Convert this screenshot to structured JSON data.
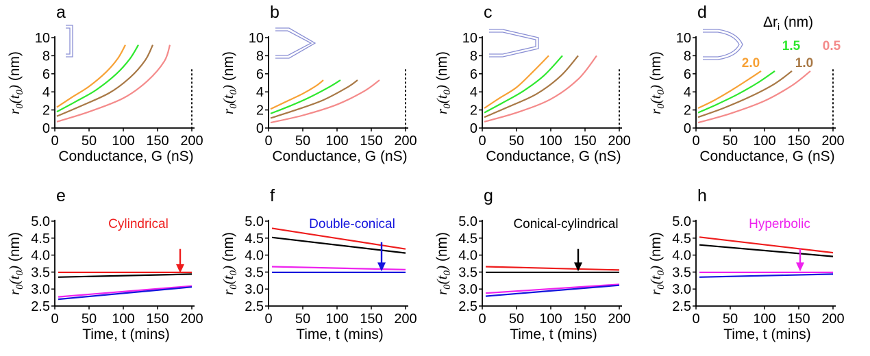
{
  "chart_data": [
    {
      "type": "line",
      "panel": "a",
      "xlabel": "Conductance, G (nS)",
      "ylabel": "r0(t0) (nm)",
      "xlim": [
        0,
        200
      ],
      "ylim": [
        0,
        10
      ],
      "xticks": [
        "0",
        "50",
        "100",
        "150",
        "200"
      ],
      "yticks": [
        "0",
        "2",
        "4",
        "6",
        "8",
        "10"
      ],
      "vline": 200,
      "series": [
        {
          "color": "#f7a135",
          "points": [
            [
              3,
              2.3
            ],
            [
              25,
              3.4
            ],
            [
              50,
              4.6
            ],
            [
              75,
              6.2
            ],
            [
              92,
              7.7
            ],
            [
              103,
              9.2
            ]
          ]
        },
        {
          "color": "#2ee82e",
          "points": [
            [
              3,
              1.8
            ],
            [
              30,
              2.9
            ],
            [
              60,
              4.2
            ],
            [
              90,
              6.0
            ],
            [
              110,
              7.7
            ],
            [
              122,
              9.2
            ]
          ]
        },
        {
          "color": "#a87845",
          "points": [
            [
              3,
              1.3
            ],
            [
              40,
              2.5
            ],
            [
              80,
              3.9
            ],
            [
              110,
              5.6
            ],
            [
              132,
              7.5
            ],
            [
              143,
              9.2
            ]
          ]
        },
        {
          "color": "#f48a8a",
          "points": [
            [
              3,
              0.7
            ],
            [
              50,
              1.8
            ],
            [
              100,
              3.3
            ],
            [
              135,
              5.2
            ],
            [
              160,
              7.4
            ],
            [
              168,
              9.2
            ]
          ]
        }
      ]
    },
    {
      "type": "line",
      "panel": "b",
      "xlabel": "Conductance, G (nS)",
      "ylabel": "r0(t0) (nm)",
      "xlim": [
        0,
        200
      ],
      "ylim": [
        0,
        10
      ],
      "xticks": [
        "0",
        "50",
        "100",
        "150",
        "200"
      ],
      "yticks": [
        "0",
        "2",
        "4",
        "6",
        "8",
        "10"
      ],
      "vline": 200,
      "series": [
        {
          "color": "#f7a135",
          "points": [
            [
              3,
              2.1
            ],
            [
              25,
              2.9
            ],
            [
              50,
              3.8
            ],
            [
              70,
              4.7
            ],
            [
              80,
              5.3
            ]
          ]
        },
        {
          "color": "#2ee82e",
          "points": [
            [
              3,
              1.6
            ],
            [
              30,
              2.4
            ],
            [
              60,
              3.4
            ],
            [
              90,
              4.6
            ],
            [
              105,
              5.3
            ]
          ]
        },
        {
          "color": "#a87845",
          "points": [
            [
              3,
              1.1
            ],
            [
              40,
              2.0
            ],
            [
              80,
              3.1
            ],
            [
              115,
              4.5
            ],
            [
              130,
              5.3
            ]
          ]
        },
        {
          "color": "#f48a8a",
          "points": [
            [
              3,
              0.6
            ],
            [
              50,
              1.4
            ],
            [
              100,
              2.6
            ],
            [
              140,
              4.1
            ],
            [
              162,
              5.3
            ]
          ]
        }
      ]
    },
    {
      "type": "line",
      "panel": "c",
      "xlabel": "Conductance, G (nS)",
      "ylabel": "r0(t0) (nm)",
      "xlim": [
        0,
        200
      ],
      "ylim": [
        0,
        10
      ],
      "xticks": [
        "0",
        "50",
        "100",
        "150",
        "200"
      ],
      "yticks": [
        "0",
        "2",
        "4",
        "6",
        "8",
        "10"
      ],
      "vline": 200,
      "series": [
        {
          "color": "#f7a135",
          "points": [
            [
              3,
              2.2
            ],
            [
              25,
              3.3
            ],
            [
              50,
              4.5
            ],
            [
              75,
              6.3
            ],
            [
              97,
              8.0
            ]
          ]
        },
        {
          "color": "#2ee82e",
          "points": [
            [
              3,
              1.7
            ],
            [
              30,
              2.8
            ],
            [
              60,
              4.1
            ],
            [
              90,
              5.8
            ],
            [
              117,
              8.0
            ]
          ]
        },
        {
          "color": "#a87845",
          "points": [
            [
              3,
              1.2
            ],
            [
              40,
              2.4
            ],
            [
              80,
              3.8
            ],
            [
              115,
              5.8
            ],
            [
              140,
              8.0
            ]
          ]
        },
        {
          "color": "#f48a8a",
          "points": [
            [
              3,
              0.7
            ],
            [
              50,
              1.7
            ],
            [
              100,
              3.2
            ],
            [
              140,
              5.4
            ],
            [
              167,
              8.0
            ]
          ]
        }
      ]
    },
    {
      "type": "line",
      "panel": "d",
      "xlabel": "Conductance, G (nS)",
      "ylabel": "r0(t0) (nm)",
      "xlim": [
        0,
        200
      ],
      "ylim": [
        0,
        10
      ],
      "xticks": [
        "0",
        "50",
        "100",
        "150",
        "200"
      ],
      "yticks": [
        "0",
        "2",
        "4",
        "6",
        "8",
        "10"
      ],
      "vline": 200,
      "legend_title": "Δri (nm)",
      "series": [
        {
          "name": "2.0",
          "color": "#f7a135",
          "points": [
            [
              3,
              2.2
            ],
            [
              25,
              3.0
            ],
            [
              50,
              4.1
            ],
            [
              75,
              5.3
            ],
            [
              95,
              6.3
            ]
          ]
        },
        {
          "name": "1.5",
          "color": "#2ee82e",
          "points": [
            [
              3,
              1.7
            ],
            [
              30,
              2.6
            ],
            [
              60,
              3.7
            ],
            [
              90,
              5.0
            ],
            [
              115,
              6.3
            ]
          ]
        },
        {
          "name": "1.0",
          "color": "#a87845",
          "points": [
            [
              3,
              1.2
            ],
            [
              40,
              2.2
            ],
            [
              80,
              3.5
            ],
            [
              115,
              4.9
            ],
            [
              140,
              6.3
            ]
          ]
        },
        {
          "name": "0.5",
          "color": "#f48a8a",
          "points": [
            [
              3,
              0.6
            ],
            [
              50,
              1.6
            ],
            [
              100,
              3.0
            ],
            [
              140,
              4.7
            ],
            [
              167,
              6.3
            ]
          ]
        }
      ]
    },
    {
      "type": "line",
      "panel": "e",
      "xlabel": "Time, t (mins)",
      "ylabel": "r0(t0) (nm)",
      "xlim": [
        0,
        200
      ],
      "ylim": [
        2.5,
        5.0
      ],
      "xticks": [
        "0",
        "50",
        "100",
        "150",
        "200"
      ],
      "yticks": [
        "2.5",
        "3.0",
        "3.5",
        "4.0",
        "4.5",
        "5.0"
      ],
      "annotation": {
        "text": "Cylindrical",
        "color": "#ee1c1c",
        "arrow_x": 183,
        "arrow_from_y": 4.18,
        "arrow_to_y": 3.47
      },
      "series": [
        {
          "color": "#ee1c1c",
          "points": [
            [
              5,
              3.49
            ],
            [
              200,
              3.49
            ]
          ]
        },
        {
          "color": "#000000",
          "points": [
            [
              5,
              3.35
            ],
            [
              200,
              3.44
            ]
          ]
        },
        {
          "color": "#ee22ee",
          "points": [
            [
              5,
              2.77
            ],
            [
              200,
              3.09
            ]
          ]
        },
        {
          "color": "#1414dd",
          "points": [
            [
              5,
              2.7
            ],
            [
              200,
              3.06
            ]
          ]
        }
      ]
    },
    {
      "type": "line",
      "panel": "f",
      "xlabel": "Time, t (mins)",
      "ylabel": "r0(t0) (nm)",
      "xlim": [
        0,
        200
      ],
      "ylim": [
        2.5,
        5.0
      ],
      "xticks": [
        "0",
        "50",
        "100",
        "150",
        "200"
      ],
      "yticks": [
        "2.5",
        "3.0",
        "3.5",
        "4.0",
        "4.5",
        "5.0"
      ],
      "annotation": {
        "text": "Double-conical",
        "color": "#1414dd",
        "arrow_x": 165,
        "arrow_from_y": 4.38,
        "arrow_to_y": 3.52
      },
      "series": [
        {
          "color": "#ee1c1c",
          "points": [
            [
              5,
              4.79
            ],
            [
              200,
              4.18
            ]
          ]
        },
        {
          "color": "#000000",
          "points": [
            [
              5,
              4.52
            ],
            [
              200,
              4.06
            ]
          ]
        },
        {
          "color": "#ee22ee",
          "points": [
            [
              5,
              3.66
            ],
            [
              200,
              3.57
            ]
          ]
        },
        {
          "color": "#1414dd",
          "points": [
            [
              5,
              3.49
            ],
            [
              200,
              3.49
            ]
          ]
        }
      ]
    },
    {
      "type": "line",
      "panel": "g",
      "xlabel": "Time, t (mins)",
      "ylabel": "r0(t0) (nm)",
      "xlim": [
        0,
        200
      ],
      "ylim": [
        2.5,
        5.0
      ],
      "xticks": [
        "0",
        "50",
        "100",
        "150",
        "200"
      ],
      "yticks": [
        "2.5",
        "3.0",
        "3.5",
        "4.0",
        "4.5",
        "5.0"
      ],
      "annotation": {
        "text": "Conical-cylindrical",
        "color": "#000000",
        "arrow_x": 140,
        "arrow_from_y": 4.18,
        "arrow_to_y": 3.52
      },
      "series": [
        {
          "color": "#ee1c1c",
          "points": [
            [
              5,
              3.66
            ],
            [
              200,
              3.56
            ]
          ]
        },
        {
          "color": "#000000",
          "points": [
            [
              5,
              3.49
            ],
            [
              200,
              3.49
            ]
          ]
        },
        {
          "color": "#ee22ee",
          "points": [
            [
              5,
              2.88
            ],
            [
              200,
              3.14
            ]
          ]
        },
        {
          "color": "#1414dd",
          "points": [
            [
              5,
              2.79
            ],
            [
              200,
              3.11
            ]
          ]
        }
      ]
    },
    {
      "type": "line",
      "panel": "h",
      "xlabel": "Time, t (mins)",
      "ylabel": "r0(t0) (nm)",
      "xlim": [
        0,
        200
      ],
      "ylim": [
        2.5,
        5.0
      ],
      "xticks": [
        "0",
        "50",
        "100",
        "150",
        "200"
      ],
      "yticks": [
        "2.5",
        "3.0",
        "3.5",
        "4.0",
        "4.5",
        "5.0"
      ],
      "annotation": {
        "text": "Hyperbolic",
        "color": "#ee22ee",
        "arrow_x": 152,
        "arrow_from_y": 4.18,
        "arrow_to_y": 3.52
      },
      "series": [
        {
          "color": "#ee1c1c",
          "points": [
            [
              5,
              4.53
            ],
            [
              200,
              4.07
            ]
          ]
        },
        {
          "color": "#000000",
          "points": [
            [
              5,
              4.3
            ],
            [
              200,
              3.96
            ]
          ]
        },
        {
          "color": "#ee22ee",
          "points": [
            [
              5,
              3.49
            ],
            [
              200,
              3.49
            ]
          ]
        },
        {
          "color": "#1414dd",
          "points": [
            [
              5,
              3.35
            ],
            [
              200,
              3.44
            ]
          ]
        }
      ]
    }
  ]
}
